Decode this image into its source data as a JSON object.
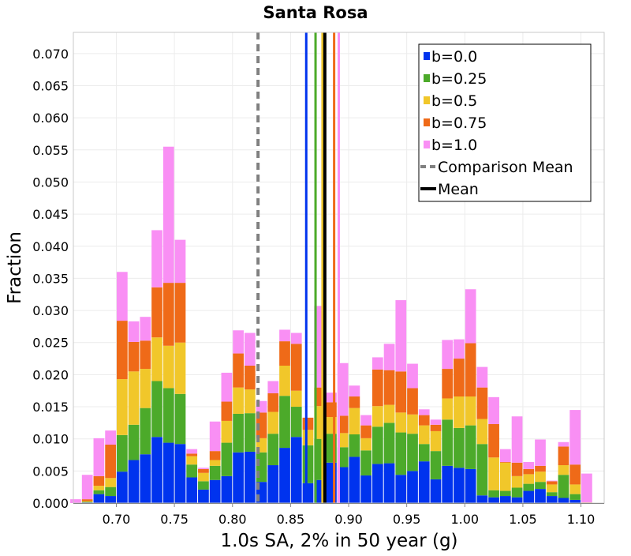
{
  "chart_data": {
    "type": "bar",
    "stacked": true,
    "title": "Santa Rosa",
    "xlabel": "1.0s SA, 2% in 50 year (g)",
    "ylabel": "Fraction",
    "xlim": [
      0.663,
      1.12
    ],
    "ylim": [
      0,
      0.0733
    ],
    "grid": true,
    "legend_position": "top-right",
    "bin_width": 0.01,
    "x_ticks": [
      "0.70",
      "0.75",
      "0.80",
      "0.85",
      "0.90",
      "0.95",
      "1.00",
      "1.05",
      "1.10"
    ],
    "y_ticks": [
      "0.000",
      "0.005",
      "0.010",
      "0.015",
      "0.020",
      "0.025",
      "0.030",
      "0.035",
      "0.040",
      "0.045",
      "0.050",
      "0.055",
      "0.060",
      "0.065",
      "0.070"
    ],
    "x": [
      0.665,
      0.675,
      0.685,
      0.695,
      0.705,
      0.715,
      0.725,
      0.735,
      0.745,
      0.755,
      0.765,
      0.775,
      0.785,
      0.795,
      0.805,
      0.815,
      0.825,
      0.835,
      0.845,
      0.855,
      0.865,
      0.875,
      0.885,
      0.895,
      0.905,
      0.915,
      0.925,
      0.935,
      0.945,
      0.955,
      0.965,
      0.975,
      0.985,
      0.995,
      1.005,
      1.015,
      1.025,
      1.035,
      1.045,
      1.055,
      1.065,
      1.075,
      1.085,
      1.095,
      1.105
    ],
    "series": [
      {
        "name": "b=0.0",
        "color": "#0033ee",
        "values": [
          0.0,
          0.0001,
          0.0014,
          0.0011,
          0.0049,
          0.0067,
          0.0076,
          0.0103,
          0.0094,
          0.0092,
          0.004,
          0.0021,
          0.0036,
          0.0042,
          0.0079,
          0.008,
          0.0033,
          0.0059,
          0.0086,
          0.0103,
          0.0031,
          0.0036,
          0.0063,
          0.0056,
          0.0072,
          0.0043,
          0.0061,
          0.0062,
          0.0044,
          0.005,
          0.0065,
          0.0037,
          0.0058,
          0.0055,
          0.0053,
          0.0012,
          0.0009,
          0.0011,
          0.0009,
          0.0019,
          0.0022,
          0.0011,
          0.0008,
          0.0005,
          0.0
        ]
      },
      {
        "name": "b=0.25",
        "color": "#4caa2a",
        "values": [
          0.0,
          0.0001,
          0.0006,
          0.0014,
          0.0057,
          0.0055,
          0.0072,
          0.0087,
          0.0085,
          0.0078,
          0.002,
          0.0013,
          0.0022,
          0.0052,
          0.006,
          0.006,
          0.0046,
          0.0049,
          0.0081,
          0.0047,
          0.0059,
          0.0064,
          0.0045,
          0.0031,
          0.0035,
          0.0039,
          0.0058,
          0.0063,
          0.0066,
          0.0058,
          0.0027,
          0.0044,
          0.0072,
          0.0062,
          0.0068,
          0.008,
          0.0011,
          0.0008,
          0.0015,
          0.0011,
          0.0011,
          0.0006,
          0.0036,
          0.0009,
          0.0
        ]
      },
      {
        "name": "b=0.5",
        "color": "#f1c72a",
        "values": [
          0.0,
          0.0001,
          0.0007,
          0.0014,
          0.0087,
          0.0083,
          0.0061,
          0.0068,
          0.0066,
          0.008,
          0.0013,
          0.0013,
          0.0009,
          0.0034,
          0.0041,
          0.0037,
          0.0022,
          0.0034,
          0.0047,
          0.0025,
          0.0024,
          0.0051,
          0.0026,
          0.0022,
          0.0041,
          0.0019,
          0.0032,
          0.0028,
          0.0031,
          0.003,
          0.0029,
          0.0031,
          0.0033,
          0.0049,
          0.0045,
          0.0039,
          0.0051,
          0.0044,
          0.0018,
          0.0015,
          0.0016,
          0.0012,
          0.0015,
          0.0015,
          0.0001
        ]
      },
      {
        "name": "b=0.75",
        "color": "#ef6a18",
        "values": [
          0.0,
          0.0003,
          0.0015,
          0.0052,
          0.0091,
          0.0046,
          0.0044,
          0.0078,
          0.0098,
          0.0093,
          0.0004,
          0.0006,
          0.0014,
          0.003,
          0.0053,
          0.0037,
          0.004,
          0.0029,
          0.0038,
          0.0073,
          0.0019,
          0.0029,
          0.0023,
          0.0027,
          0.0018,
          0.002,
          0.0057,
          0.0054,
          0.0064,
          0.0041,
          0.0016,
          0.001,
          0.0046,
          0.0059,
          0.0083,
          0.0049,
          0.0052,
          0.0001,
          0.0021,
          0.0008,
          0.0009,
          0.0005,
          0.0029,
          0.0031,
          0.0
        ]
      },
      {
        "name": "b=1.0",
        "color": "#f98ff4",
        "values": [
          0.0006,
          0.0038,
          0.0059,
          0.0022,
          0.0076,
          0.0032,
          0.0037,
          0.0089,
          0.0212,
          0.0067,
          0.0007,
          0.0002,
          0.0046,
          0.0045,
          0.0036,
          0.0051,
          0.0018,
          0.0019,
          0.0018,
          0.0017,
          0.0,
          0.0127,
          0.0015,
          0.0082,
          0.0017,
          0.0016,
          0.0019,
          0.0041,
          0.0111,
          0.0038,
          0.0009,
          0.0008,
          0.0045,
          0.003,
          0.0084,
          0.0032,
          0.0042,
          0.002,
          0.0072,
          0.0011,
          0.0041,
          0.0001,
          0.0007,
          0.0085,
          0.0045
        ]
      }
    ],
    "vertical_lines": [
      {
        "label": "b=0.0",
        "x": 0.8635,
        "color": "#0033ee",
        "style": "solid"
      },
      {
        "label": "b=0.25",
        "x": 0.8715,
        "color": "#4caa2a",
        "style": "solid"
      },
      {
        "label": "b=0.5",
        "x": 0.8775,
        "color": "#f1c72a",
        "style": "solid"
      },
      {
        "label": "b=0.75",
        "x": 0.8875,
        "color": "#ef6a18",
        "style": "solid"
      },
      {
        "label": "b=1.0",
        "x": 0.8915,
        "color": "#f98ff4",
        "style": "solid"
      },
      {
        "label": "Comparison Mean",
        "x": 0.822,
        "color": "#808080",
        "style": "dashed"
      },
      {
        "label": "Mean",
        "x": 0.8795,
        "color": "#000000",
        "style": "solid"
      }
    ],
    "legend": [
      {
        "label": "b=0.0",
        "color": "#0033ee",
        "kind": "box"
      },
      {
        "label": "b=0.25",
        "color": "#4caa2a",
        "kind": "box"
      },
      {
        "label": "b=0.5",
        "color": "#f1c72a",
        "kind": "box"
      },
      {
        "label": "b=0.75",
        "color": "#ef6a18",
        "kind": "box"
      },
      {
        "label": "b=1.0",
        "color": "#f98ff4",
        "kind": "box"
      },
      {
        "label": "Comparison Mean",
        "color": "#808080",
        "kind": "dashed-line"
      },
      {
        "label": "Mean",
        "color": "#000000",
        "kind": "line"
      }
    ]
  }
}
